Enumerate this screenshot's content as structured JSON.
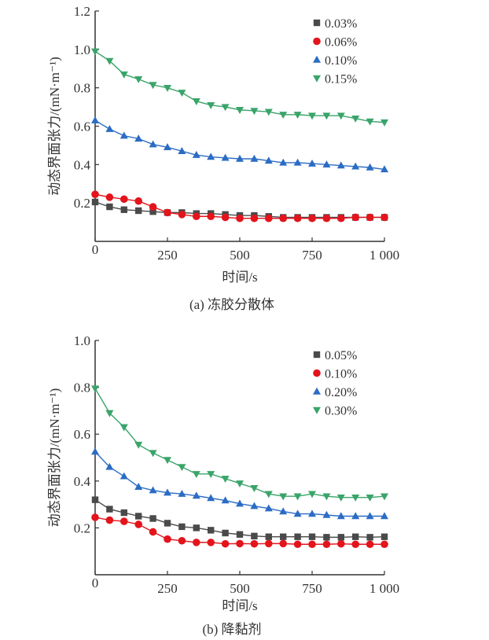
{
  "chart_data": [
    {
      "type": "line",
      "caption": "(a) 冻胶分散体",
      "xlabel": "时间/s",
      "ylabel": "动态界面张力/(mN·m⁻¹)",
      "xlim": [
        0,
        1000
      ],
      "ylim": [
        0,
        1.2
      ],
      "xticks": [
        "0",
        "250",
        "500",
        "750",
        "1 000"
      ],
      "xtick_values": [
        0,
        250,
        500,
        750,
        1000
      ],
      "yticks": [
        "0.2",
        "0.4",
        "0.6",
        "0.8",
        "1.0",
        "1.2"
      ],
      "ytick_values": [
        0.2,
        0.4,
        0.6,
        0.8,
        1.0,
        1.2
      ],
      "grid": false,
      "legend_position": "top-right",
      "x": [
        0,
        50,
        100,
        150,
        200,
        250,
        300,
        350,
        400,
        450,
        500,
        550,
        600,
        650,
        700,
        750,
        800,
        850,
        900,
        950,
        1000
      ],
      "series": [
        {
          "name": "0.03%",
          "marker": "square",
          "color": "#4a4a4a",
          "values": [
            0.205,
            0.18,
            0.165,
            0.16,
            0.155,
            0.15,
            0.15,
            0.145,
            0.145,
            0.14,
            0.135,
            0.135,
            0.13,
            0.125,
            0.125,
            0.125,
            0.125,
            0.125,
            0.125,
            0.125,
            0.125
          ]
        },
        {
          "name": "0.06%",
          "marker": "circle",
          "color": "#e3141c",
          "values": [
            0.245,
            0.23,
            0.22,
            0.21,
            0.18,
            0.15,
            0.14,
            0.13,
            0.13,
            0.125,
            0.12,
            0.12,
            0.12,
            0.12,
            0.12,
            0.12,
            0.12,
            0.12,
            0.125,
            0.125,
            0.125
          ]
        },
        {
          "name": "0.10%",
          "marker": "triangle-up",
          "color": "#2b6cc4",
          "values": [
            0.63,
            0.585,
            0.55,
            0.535,
            0.505,
            0.49,
            0.47,
            0.45,
            0.44,
            0.435,
            0.43,
            0.43,
            0.42,
            0.41,
            0.41,
            0.405,
            0.4,
            0.395,
            0.39,
            0.385,
            0.375
          ]
        },
        {
          "name": "0.15%",
          "marker": "triangle-down",
          "color": "#3aa46a",
          "values": [
            0.99,
            0.94,
            0.87,
            0.845,
            0.815,
            0.8,
            0.775,
            0.73,
            0.71,
            0.7,
            0.685,
            0.68,
            0.675,
            0.66,
            0.66,
            0.655,
            0.655,
            0.655,
            0.64,
            0.625,
            0.62
          ]
        }
      ]
    },
    {
      "type": "line",
      "caption": "(b) 降黏剂",
      "xlabel": "时间/s",
      "ylabel": "动态界面张力/(mN·m⁻¹)",
      "xlim": [
        0,
        1000
      ],
      "ylim": [
        0,
        1.0
      ],
      "xticks": [
        "0",
        "250",
        "500",
        "750",
        "1 000"
      ],
      "xtick_values": [
        0,
        250,
        500,
        750,
        1000
      ],
      "yticks": [
        "0.2",
        "0.4",
        "0.6",
        "0.8",
        "1.0"
      ],
      "ytick_values": [
        0.2,
        0.4,
        0.6,
        0.8,
        1.0
      ],
      "grid": false,
      "legend_position": "top-right",
      "x": [
        0,
        50,
        100,
        150,
        200,
        250,
        300,
        350,
        400,
        450,
        500,
        550,
        600,
        650,
        700,
        750,
        800,
        850,
        900,
        950,
        1000
      ],
      "series": [
        {
          "name": "0.05%",
          "marker": "square",
          "color": "#4a4a4a",
          "values": [
            0.32,
            0.28,
            0.265,
            0.25,
            0.24,
            0.22,
            0.205,
            0.2,
            0.19,
            0.178,
            0.172,
            0.165,
            0.162,
            0.162,
            0.162,
            0.162,
            0.16,
            0.16,
            0.162,
            0.16,
            0.162
          ]
        },
        {
          "name": "0.10%",
          "marker": "circle",
          "color": "#e3141c",
          "values": [
            0.245,
            0.233,
            0.228,
            0.215,
            0.183,
            0.152,
            0.145,
            0.138,
            0.138,
            0.132,
            0.133,
            0.132,
            0.133,
            0.133,
            0.13,
            0.13,
            0.13,
            0.132,
            0.13,
            0.13,
            0.13
          ]
        },
        {
          "name": "0.20%",
          "marker": "triangle-up",
          "color": "#2b6cc4",
          "values": [
            0.525,
            0.46,
            0.42,
            0.375,
            0.36,
            0.35,
            0.345,
            0.337,
            0.327,
            0.317,
            0.303,
            0.293,
            0.283,
            0.27,
            0.26,
            0.26,
            0.255,
            0.25,
            0.25,
            0.25,
            0.25
          ]
        },
        {
          "name": "0.30%",
          "marker": "triangle-down",
          "color": "#3aa46a",
          "values": [
            0.795,
            0.69,
            0.63,
            0.555,
            0.52,
            0.49,
            0.46,
            0.43,
            0.43,
            0.41,
            0.39,
            0.37,
            0.345,
            0.335,
            0.335,
            0.345,
            0.335,
            0.33,
            0.33,
            0.33,
            0.335
          ]
        }
      ]
    }
  ]
}
